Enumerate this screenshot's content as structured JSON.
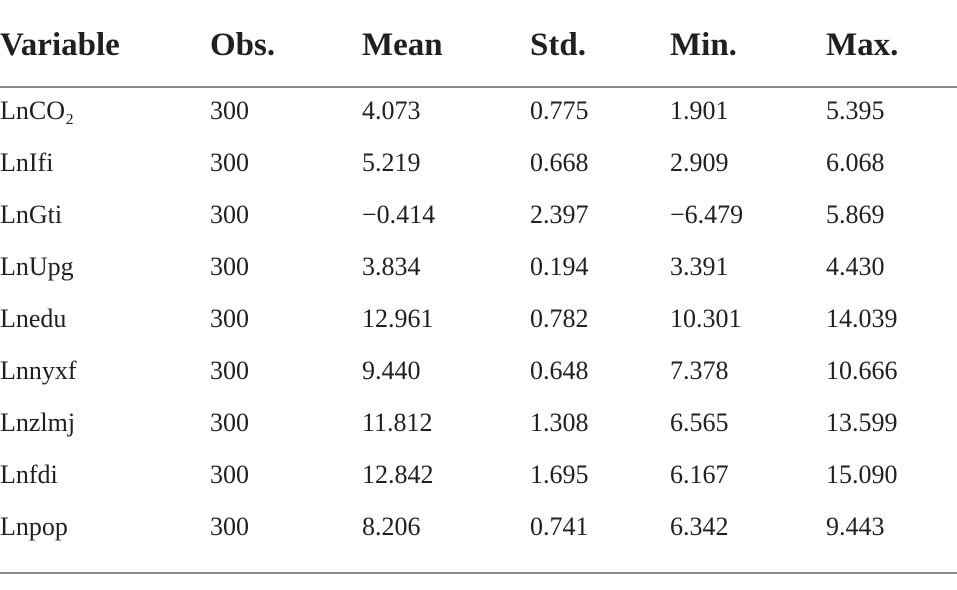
{
  "table": {
    "header": [
      "Variable",
      "Obs.",
      "Mean",
      "Std.",
      "Min.",
      "Max."
    ],
    "rows": [
      [
        "LnCO₂",
        "300",
        "4.073",
        "0.775",
        "1.901",
        "5.395"
      ],
      [
        "LnIfi",
        "300",
        "5.219",
        "0.668",
        "2.909",
        "6.068"
      ],
      [
        "LnGti",
        "300",
        "−0.414",
        "2.397",
        "−6.479",
        "5.869"
      ],
      [
        "LnUpg",
        "300",
        "3.834",
        "0.194",
        "3.391",
        "4.430"
      ],
      [
        "Lnedu",
        "300",
        "12.961",
        "0.782",
        "10.301",
        "14.039"
      ],
      [
        "Lnnyxf",
        "300",
        "9.440",
        "0.648",
        "7.378",
        "10.666"
      ],
      [
        "Lnzlmj",
        "300",
        "11.812",
        "1.308",
        "6.565",
        "13.599"
      ],
      [
        "Lnfdi",
        "300",
        "12.842",
        "1.695",
        "6.167",
        "15.090"
      ],
      [
        "Lnpop",
        "300",
        "8.206",
        "0.741",
        "6.342",
        "9.443"
      ]
    ]
  }
}
